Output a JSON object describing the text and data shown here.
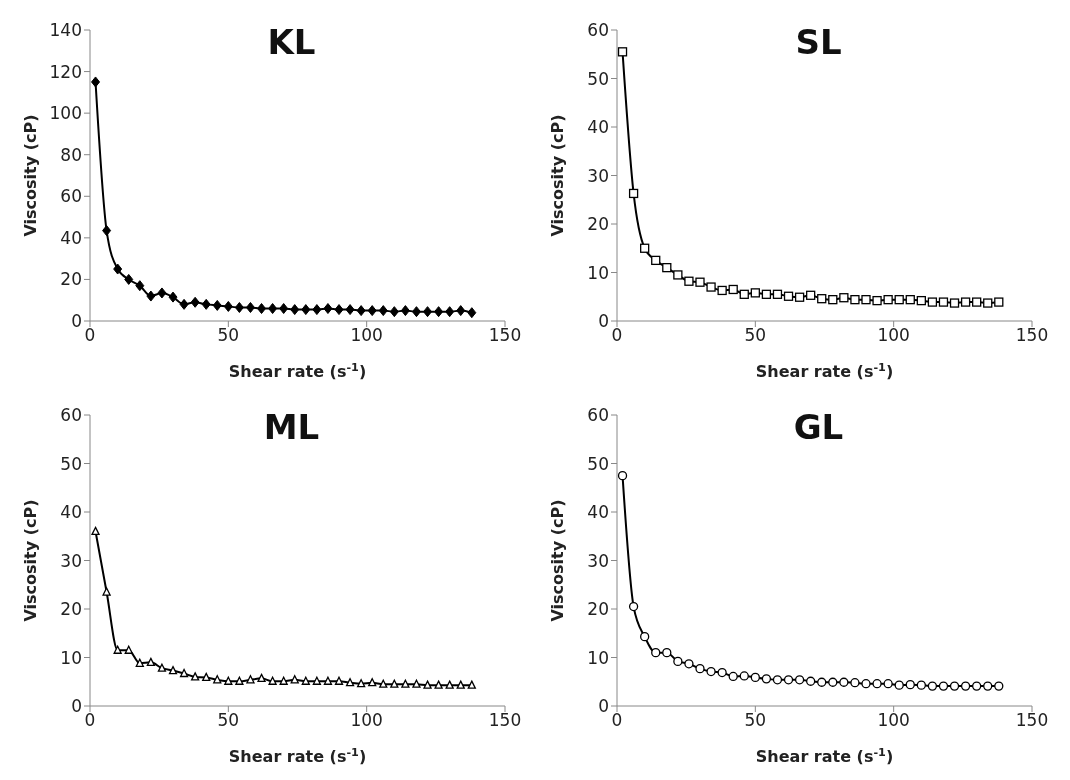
{
  "chart_data": [
    {
      "type": "line",
      "title": "KL",
      "xlabel": "Shear rate (s$^{-1}$)",
      "ylabel": "Viscosity (cP)",
      "marker": "diamond",
      "grid": false,
      "x": [
        2,
        6,
        10,
        14,
        18,
        22,
        26,
        30,
        34,
        38,
        42,
        46,
        50,
        54,
        58,
        62,
        66,
        70,
        74,
        78,
        82,
        86,
        90,
        94,
        98,
        102,
        106,
        110,
        114,
        118,
        122,
        126,
        130,
        134,
        138
      ],
      "series": [
        {
          "color": "#000000",
          "values": [
            115,
            43.5,
            25,
            20,
            17,
            12,
            13.5,
            11.5,
            8,
            9,
            8,
            7.5,
            7,
            6.5,
            6.5,
            6,
            6,
            6,
            5.5,
            5.5,
            5.5,
            6,
            5.5,
            5.5,
            5,
            5,
            5,
            4.5,
            5,
            4.5,
            4.5,
            4.5,
            4.5,
            5,
            4
          ]
        }
      ],
      "xlim": [
        0,
        150
      ],
      "xticks": [
        0,
        50,
        100,
        150
      ],
      "ylim": [
        0,
        140
      ],
      "yticks": [
        0,
        20,
        40,
        60,
        80,
        100,
        120,
        140
      ]
    },
    {
      "type": "line",
      "title": "SL",
      "xlabel": "Shear rate (s$^{-1}$)",
      "ylabel": "Viscosity (cP)",
      "marker": "square",
      "grid": false,
      "x": [
        2,
        6,
        10,
        14,
        18,
        22,
        26,
        30,
        34,
        38,
        42,
        46,
        50,
        54,
        58,
        62,
        66,
        70,
        74,
        78,
        82,
        86,
        90,
        94,
        98,
        102,
        106,
        110,
        114,
        118,
        122,
        126,
        130,
        134,
        138
      ],
      "series": [
        {
          "color": "#000000",
          "values": [
            55.5,
            26.3,
            15,
            12.5,
            11,
            9.5,
            8.2,
            8,
            7,
            6.3,
            6.5,
            5.5,
            5.8,
            5.5,
            5.5,
            5.1,
            4.9,
            5.3,
            4.6,
            4.4,
            4.8,
            4.4,
            4.4,
            4.2,
            4.4,
            4.4,
            4.4,
            4.2,
            3.9,
            3.9,
            3.7,
            3.9,
            3.9,
            3.7,
            3.9
          ]
        }
      ],
      "xlim": [
        0,
        150
      ],
      "xticks": [
        0,
        50,
        100,
        150
      ],
      "ylim": [
        0,
        60
      ],
      "yticks": [
        0,
        10,
        20,
        30,
        40,
        50,
        60
      ]
    },
    {
      "type": "line",
      "title": "ML",
      "xlabel": "Shear rate (s$^{-1}$)",
      "ylabel": "Viscosity (cP)",
      "marker": "triangle",
      "grid": false,
      "x": [
        2,
        6,
        10,
        14,
        18,
        22,
        26,
        30,
        34,
        38,
        42,
        46,
        50,
        54,
        58,
        62,
        66,
        70,
        74,
        78,
        82,
        86,
        90,
        94,
        98,
        102,
        106,
        110,
        114,
        118,
        122,
        126,
        130,
        134,
        138
      ],
      "series": [
        {
          "color": "#000000",
          "values": [
            36,
            23.5,
            11.5,
            11.5,
            8.8,
            9,
            7.8,
            7.3,
            6.7,
            6,
            5.9,
            5.4,
            5.1,
            5.1,
            5.4,
            5.7,
            5.1,
            5.1,
            5.4,
            5.1,
            5.1,
            5.1,
            5.1,
            4.8,
            4.6,
            4.8,
            4.5,
            4.5,
            4.5,
            4.5,
            4.3,
            4.3,
            4.3,
            4.3,
            4.3
          ]
        }
      ],
      "xlim": [
        0,
        150
      ],
      "xticks": [
        0,
        50,
        100,
        150
      ],
      "ylim": [
        0,
        60
      ],
      "yticks": [
        0,
        10,
        20,
        30,
        40,
        50,
        60
      ]
    },
    {
      "type": "line",
      "title": "GL",
      "xlabel": "Shear rate (s$^{-1}$)",
      "ylabel": "Viscosity (cP)",
      "marker": "circle",
      "grid": false,
      "x": [
        2,
        6,
        10,
        14,
        18,
        22,
        26,
        30,
        34,
        38,
        42,
        46,
        50,
        54,
        58,
        62,
        66,
        70,
        74,
        78,
        82,
        86,
        90,
        94,
        98,
        102,
        106,
        110,
        114,
        118,
        122,
        126,
        130,
        134,
        138
      ],
      "series": [
        {
          "color": "#000000",
          "values": [
            47.5,
            20.5,
            14.3,
            11,
            11,
            9.2,
            8.7,
            7.7,
            7.1,
            6.9,
            6.1,
            6.2,
            5.9,
            5.6,
            5.4,
            5.4,
            5.4,
            5.1,
            4.9,
            4.9,
            4.9,
            4.8,
            4.6,
            4.6,
            4.6,
            4.3,
            4.4,
            4.3,
            4.1,
            4.1,
            4.1,
            4.1,
            4.1,
            4.1,
            4.1
          ]
        }
      ],
      "xlim": [
        0,
        150
      ],
      "xticks": [
        0,
        50,
        100,
        150
      ],
      "ylim": [
        0,
        60
      ],
      "yticks": [
        0,
        10,
        20,
        30,
        40,
        50,
        60
      ]
    }
  ]
}
